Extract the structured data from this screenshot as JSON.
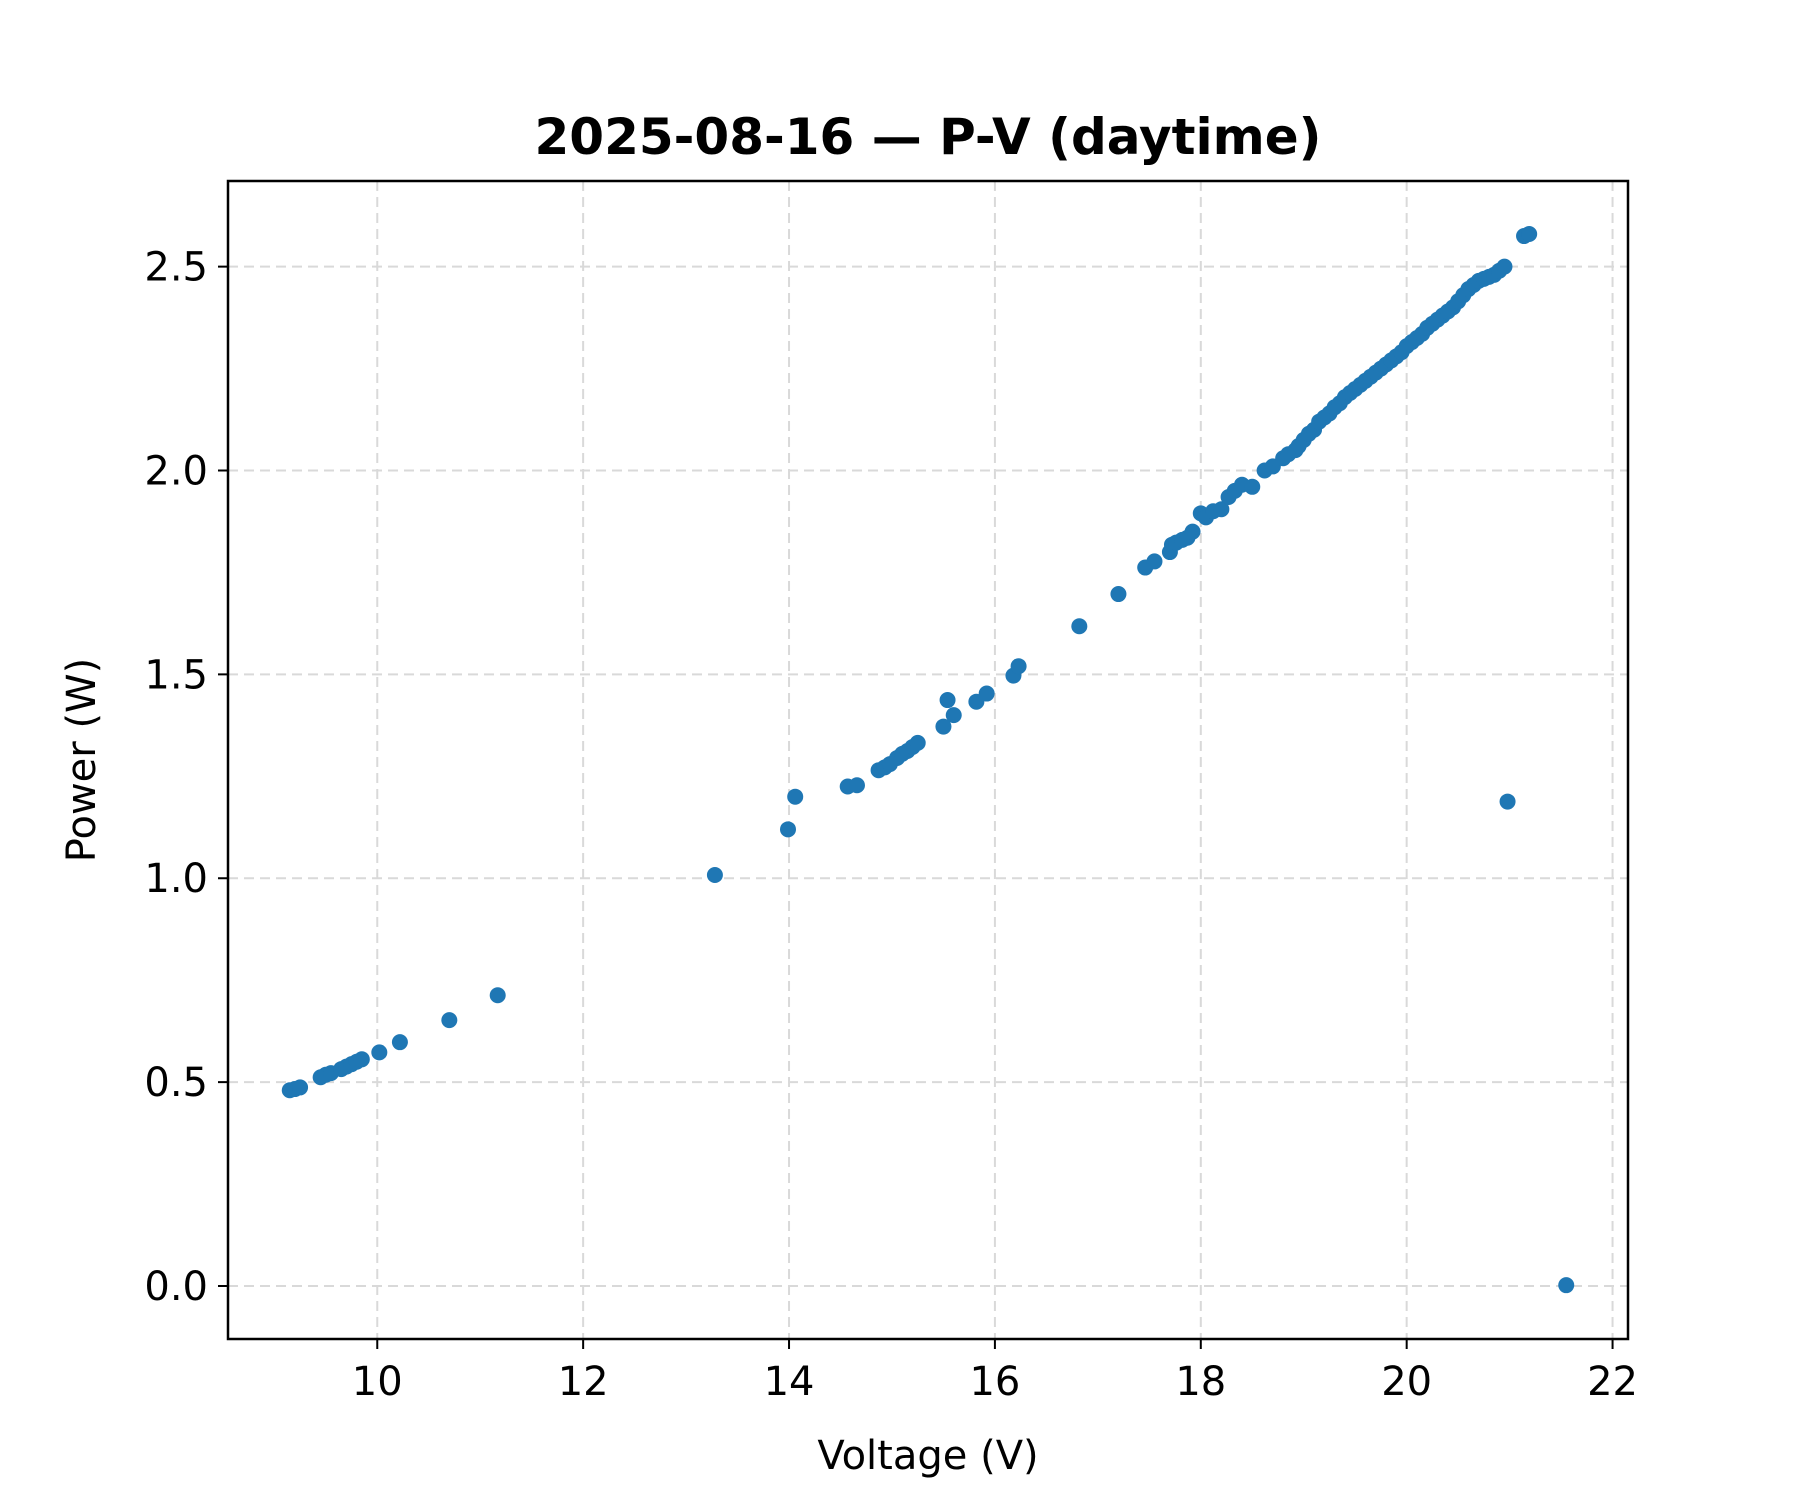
{
  "chart_data": {
    "type": "scatter",
    "title": "2025-08-16 — P-V (daytime)",
    "xlabel": "Voltage (V)",
    "ylabel": "Power (W)",
    "xlim": [
      8.55,
      22.15
    ],
    "ylim": [
      -0.13,
      2.71
    ],
    "xticks": [
      10,
      12,
      14,
      16,
      18,
      20,
      22
    ],
    "yticks": [
      0.0,
      0.5,
      1.0,
      1.5,
      2.0,
      2.5
    ],
    "xtick_labels": [
      "10",
      "12",
      "14",
      "16",
      "18",
      "20",
      "22"
    ],
    "ytick_labels": [
      "0.0",
      "0.5",
      "1.0",
      "1.5",
      "2.0",
      "2.5"
    ],
    "grid": true,
    "point_color": "#1f77b4",
    "points": {
      "x": [
        9.15,
        9.2,
        9.25,
        9.45,
        9.5,
        9.55,
        9.65,
        9.7,
        9.75,
        9.8,
        9.85,
        10.02,
        10.22,
        10.7,
        11.17,
        13.28,
        13.99,
        14.06,
        14.57,
        14.66,
        14.87,
        14.93,
        14.98,
        15.05,
        15.1,
        15.15,
        15.2,
        15.25,
        15.5,
        15.54,
        15.6,
        15.82,
        15.92,
        16.18,
        16.23,
        16.82,
        17.2,
        17.46,
        17.55,
        17.7,
        17.72,
        17.76,
        17.82,
        17.87,
        17.92,
        18.0,
        18.05,
        18.12,
        18.2,
        18.27,
        18.33,
        18.4,
        18.5,
        18.62,
        18.7,
        18.8,
        18.85,
        18.92,
        18.95,
        19.0,
        19.05,
        19.1,
        19.15,
        19.2,
        19.25,
        19.3,
        19.35,
        19.4,
        19.45,
        19.5,
        19.55,
        19.6,
        19.65,
        19.7,
        19.75,
        19.8,
        19.85,
        19.9,
        19.95,
        20.0,
        20.05,
        20.1,
        20.15,
        20.2,
        20.25,
        20.3,
        20.35,
        20.4,
        20.45,
        20.5,
        20.55,
        20.6,
        20.65,
        20.7,
        20.75,
        20.8,
        20.85,
        20.9,
        20.95,
        21.14,
        21.19,
        20.98,
        21.55
      ],
      "y": [
        0.48,
        0.483,
        0.487,
        0.512,
        0.518,
        0.522,
        0.532,
        0.538,
        0.544,
        0.55,
        0.556,
        0.573,
        0.598,
        0.652,
        0.713,
        1.008,
        1.12,
        1.2,
        1.225,
        1.228,
        1.265,
        1.272,
        1.28,
        1.295,
        1.305,
        1.312,
        1.322,
        1.332,
        1.372,
        1.437,
        1.4,
        1.433,
        1.453,
        1.497,
        1.52,
        1.618,
        1.697,
        1.762,
        1.777,
        1.8,
        1.818,
        1.823,
        1.83,
        1.835,
        1.85,
        1.895,
        1.885,
        1.9,
        1.905,
        1.935,
        1.95,
        1.965,
        1.96,
        2.0,
        2.01,
        2.03,
        2.04,
        2.05,
        2.06,
        2.075,
        2.09,
        2.1,
        2.12,
        2.13,
        2.14,
        2.155,
        2.165,
        2.18,
        2.19,
        2.2,
        2.21,
        2.22,
        2.23,
        2.24,
        2.25,
        2.26,
        2.27,
        2.28,
        2.29,
        2.305,
        2.315,
        2.325,
        2.335,
        2.35,
        2.36,
        2.37,
        2.38,
        2.39,
        2.4,
        2.415,
        2.43,
        2.445,
        2.455,
        2.465,
        2.47,
        2.475,
        2.48,
        2.49,
        2.5,
        2.575,
        2.58,
        1.188,
        0.002
      ]
    }
  }
}
